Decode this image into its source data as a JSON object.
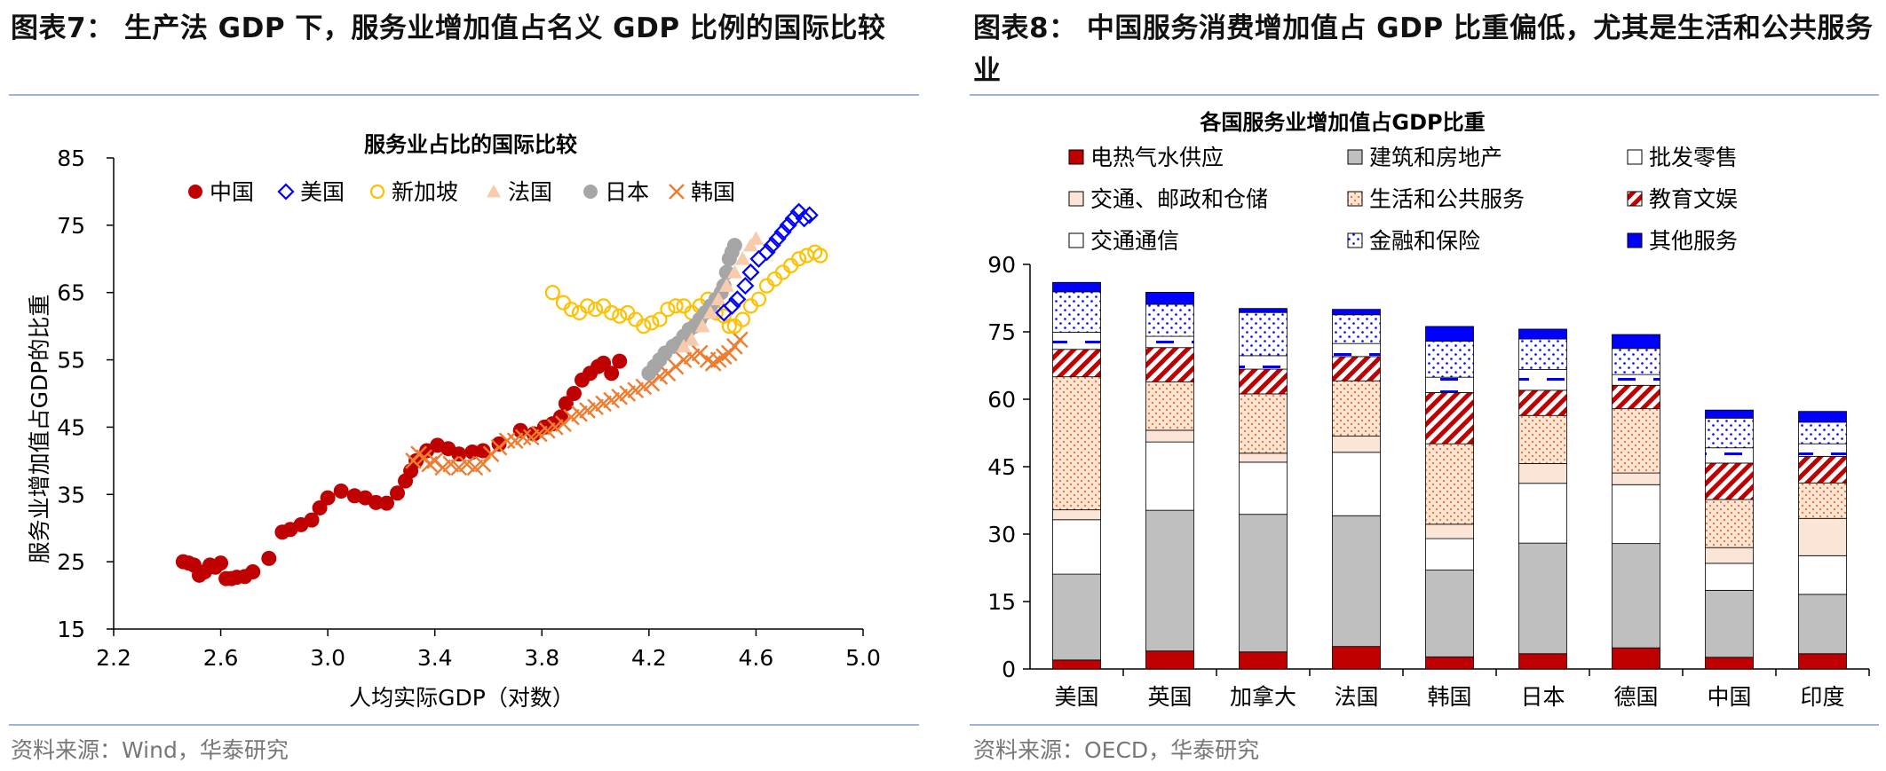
{
  "left": {
    "figure_title": "图表7：  生产法 GDP 下，服务业增加值占名义 GDP 比例的国际比较",
    "source": "资料来源：Wind，华泰研究"
  },
  "right": {
    "figure_title": "图表8：  中国服务消费增加值占 GDP 比重偏低，尤其是生活和公共服务业",
    "source": "资料来源：OECD，华泰研究"
  },
  "colors": {
    "china": "#c00000",
    "usa": "#0000ff",
    "singapore": "#ffc000",
    "france": "#f8cbad",
    "japan": "#a6a6a6",
    "korea": "#ed7d31",
    "utilities": "#c00000",
    "construction": "#bfbfbf",
    "wholesale": "#ffffff",
    "transport": "#fbe5d6",
    "public_services": "#fbe5d6",
    "education": "#c00000",
    "telecom": "#ffffff",
    "finance": "#ffffff",
    "other": "#0000ff"
  },
  "chart_data": [
    {
      "type": "scatter",
      "title": "服务业占比的国际比较",
      "xlabel": "人均实际GDP（对数）",
      "ylabel": "服务业增加值占GDP的比重",
      "xlim": [
        2.2,
        5.0
      ],
      "ylim": [
        15,
        85
      ],
      "xticks": [
        "2.2",
        "2.6",
        "3.0",
        "3.4",
        "3.8",
        "4.2",
        "4.6",
        "5.0"
      ],
      "yticks": [
        "15",
        "25",
        "35",
        "45",
        "55",
        "65",
        "75",
        "85"
      ],
      "legend_position": "top",
      "series": [
        {
          "name": "中国",
          "marker": "circle-filled",
          "color": "#c00000",
          "points": [
            [
              2.46,
              25
            ],
            [
              2.48,
              24.8
            ],
            [
              2.5,
              24.5
            ],
            [
              2.52,
              23
            ],
            [
              2.54,
              23.5
            ],
            [
              2.56,
              24.5
            ],
            [
              2.58,
              24.2
            ],
            [
              2.6,
              24.8
            ],
            [
              2.62,
              22.5
            ],
            [
              2.64,
              22.5
            ],
            [
              2.66,
              22.7
            ],
            [
              2.69,
              22.8
            ],
            [
              2.72,
              23.5
            ],
            [
              2.78,
              25.5
            ],
            [
              2.83,
              29.4
            ],
            [
              2.86,
              29.8
            ],
            [
              2.9,
              30.5
            ],
            [
              2.94,
              31.2
            ],
            [
              2.97,
              33
            ],
            [
              3.0,
              34.5
            ],
            [
              3.05,
              35.5
            ],
            [
              3.1,
              34.8
            ],
            [
              3.14,
              34.5
            ],
            [
              3.18,
              33.8
            ],
            [
              3.22,
              33.7
            ],
            [
              3.26,
              35.2
            ],
            [
              3.29,
              37
            ],
            [
              3.31,
              38.5
            ],
            [
              3.33,
              40
            ],
            [
              3.37,
              41.5
            ],
            [
              3.41,
              42.3
            ],
            [
              3.45,
              41.8
            ],
            [
              3.49,
              41
            ],
            [
              3.54,
              41.3
            ],
            [
              3.58,
              41.5
            ],
            [
              3.64,
              42.5
            ],
            [
              3.72,
              44.5
            ],
            [
              3.77,
              44
            ],
            [
              3.81,
              45
            ],
            [
              3.84,
              45.5
            ],
            [
              3.87,
              46.5
            ],
            [
              3.89,
              48.5
            ],
            [
              3.92,
              50
            ],
            [
              3.95,
              52
            ],
            [
              3.98,
              53
            ],
            [
              4.01,
              54
            ],
            [
              4.03,
              54.5
            ],
            [
              4.06,
              53
            ],
            [
              4.09,
              54.8
            ]
          ]
        },
        {
          "name": "美国",
          "marker": "diamond-open",
          "color": "#0000ff",
          "points": [
            [
              4.48,
              62
            ],
            [
              4.51,
              63
            ],
            [
              4.53,
              64
            ],
            [
              4.56,
              66
            ],
            [
              4.58,
              68
            ],
            [
              4.61,
              70
            ],
            [
              4.64,
              71
            ],
            [
              4.66,
              72
            ],
            [
              4.68,
              73
            ],
            [
              4.7,
              74
            ],
            [
              4.72,
              75
            ],
            [
              4.74,
              76
            ],
            [
              4.76,
              77
            ],
            [
              4.78,
              76
            ],
            [
              4.8,
              76.5
            ]
          ]
        },
        {
          "name": "新加坡",
          "marker": "circle-open",
          "color": "#ffc000",
          "points": [
            [
              3.84,
              65
            ],
            [
              3.88,
              63.5
            ],
            [
              3.91,
              62.5
            ],
            [
              3.94,
              62
            ],
            [
              3.97,
              63
            ],
            [
              4.0,
              62.5
            ],
            [
              4.03,
              63
            ],
            [
              4.06,
              62
            ],
            [
              4.09,
              61.5
            ],
            [
              4.12,
              62
            ],
            [
              4.15,
              61
            ],
            [
              4.18,
              60
            ],
            [
              4.21,
              60.5
            ],
            [
              4.24,
              61
            ],
            [
              4.27,
              62.5
            ],
            [
              4.3,
              63
            ],
            [
              4.33,
              63
            ],
            [
              4.36,
              62
            ],
            [
              4.39,
              63
            ],
            [
              4.42,
              64
            ],
            [
              4.45,
              62
            ],
            [
              4.48,
              61.5
            ],
            [
              4.5,
              60
            ],
            [
              4.52,
              60
            ],
            [
              4.55,
              61
            ],
            [
              4.58,
              63
            ],
            [
              4.61,
              64
            ],
            [
              4.64,
              66
            ],
            [
              4.67,
              67
            ],
            [
              4.7,
              68
            ],
            [
              4.73,
              69
            ],
            [
              4.76,
              70
            ],
            [
              4.79,
              70.5
            ],
            [
              4.82,
              71
            ],
            [
              4.84,
              70.5
            ]
          ]
        },
        {
          "name": "法国",
          "marker": "triangle-filled",
          "color": "#f8cbad",
          "points": [
            [
              4.33,
              57
            ],
            [
              4.36,
              58
            ],
            [
              4.4,
              60
            ],
            [
              4.43,
              62
            ],
            [
              4.46,
              64
            ],
            [
              4.49,
              66
            ],
            [
              4.52,
              68
            ],
            [
              4.55,
              70
            ],
            [
              4.58,
              72
            ],
            [
              4.6,
              73
            ]
          ]
        },
        {
          "name": "日本",
          "marker": "circle-filled",
          "color": "#a6a6a6",
          "points": [
            [
              4.2,
              53
            ],
            [
              4.22,
              54
            ],
            [
              4.24,
              55
            ],
            [
              4.26,
              56
            ],
            [
              4.29,
              57
            ],
            [
              4.31,
              57.5
            ],
            [
              4.33,
              58.5
            ],
            [
              4.35,
              59.5
            ],
            [
              4.37,
              60
            ],
            [
              4.39,
              61
            ],
            [
              4.41,
              62
            ],
            [
              4.43,
              63
            ],
            [
              4.45,
              64
            ],
            [
              4.47,
              65
            ],
            [
              4.48,
              66
            ],
            [
              4.49,
              68
            ],
            [
              4.5,
              70
            ],
            [
              4.51,
              71
            ],
            [
              4.52,
              72
            ]
          ]
        },
        {
          "name": "韩国",
          "marker": "x",
          "color": "#ed7d31",
          "points": [
            [
              3.32,
              40
            ],
            [
              3.34,
              41
            ],
            [
              3.36,
              40.5
            ],
            [
              3.38,
              39.5
            ],
            [
              3.4,
              40
            ],
            [
              3.43,
              39
            ],
            [
              3.46,
              39.5
            ],
            [
              3.49,
              39
            ],
            [
              3.52,
              39.5
            ],
            [
              3.55,
              39
            ],
            [
              3.58,
              39.5
            ],
            [
              3.61,
              41
            ],
            [
              3.64,
              42
            ],
            [
              3.67,
              43
            ],
            [
              3.7,
              43
            ],
            [
              3.73,
              43.5
            ],
            [
              3.76,
              43.5
            ],
            [
              3.79,
              44
            ],
            [
              3.82,
              44.5
            ],
            [
              3.85,
              45
            ],
            [
              3.88,
              45.5
            ],
            [
              3.91,
              46.5
            ],
            [
              3.94,
              47
            ],
            [
              3.97,
              47.5
            ],
            [
              4.0,
              48
            ],
            [
              4.03,
              48.5
            ],
            [
              4.06,
              49
            ],
            [
              4.09,
              49.5
            ],
            [
              4.12,
              50
            ],
            [
              4.15,
              50.5
            ],
            [
              4.18,
              51
            ],
            [
              4.21,
              51.5
            ],
            [
              4.24,
              52.5
            ],
            [
              4.27,
              53
            ],
            [
              4.3,
              54
            ],
            [
              4.33,
              55
            ],
            [
              4.36,
              55.5
            ],
            [
              4.39,
              56
            ],
            [
              4.42,
              55
            ],
            [
              4.44,
              54.5
            ],
            [
              4.46,
              55
            ],
            [
              4.48,
              55.5
            ],
            [
              4.5,
              56
            ],
            [
              4.52,
              57
            ],
            [
              4.54,
              58
            ]
          ]
        }
      ]
    },
    {
      "type": "bar",
      "stacked": true,
      "title": "各国服务业增加值占GDP比重",
      "xlabel": "",
      "ylabel": "",
      "ylim": [
        0,
        90
      ],
      "yticks": [
        "0",
        "15",
        "30",
        "45",
        "60",
        "75",
        "90"
      ],
      "legend_position": "top",
      "categories": [
        "美国",
        "英国",
        "加拿大",
        "法国",
        "韩国",
        "日本",
        "德国",
        "中国",
        "印度"
      ],
      "series": [
        {
          "name": "电热气水供应",
          "key": "utilities",
          "pattern": "solid",
          "color": "#c00000",
          "values": [
            2,
            4,
            3.8,
            5,
            2.7,
            3.4,
            4.7,
            2.6,
            3.4
          ]
        },
        {
          "name": "建筑和房地产",
          "key": "construction",
          "pattern": "solid",
          "color": "#bfbfbf",
          "values": [
            19.1,
            31.3,
            30.6,
            29.1,
            19.3,
            24.6,
            23.2,
            14.9,
            13.2
          ]
        },
        {
          "name": "批发零售",
          "key": "wholesale",
          "pattern": "solid",
          "color": "#ffffff",
          "values": [
            12.1,
            15.2,
            11.6,
            14.1,
            7,
            13.3,
            13.1,
            6,
            8.6
          ]
        },
        {
          "name": "交通、邮政和仓储",
          "key": "transport",
          "pattern": "solid",
          "color": "#fbe5d6",
          "values": [
            2.2,
            2.6,
            2,
            3.6,
            3.2,
            4.4,
            2.6,
            3.5,
            8.3
          ]
        },
        {
          "name": "生活和公共服务",
          "key": "public_services",
          "pattern": "dots",
          "color": "#ed7d31",
          "values": [
            29.6,
            10.8,
            13.2,
            12.3,
            17.9,
            10.7,
            14.3,
            10.7,
            7.9
          ]
        },
        {
          "name": "教育文娱",
          "key": "education",
          "pattern": "stripes",
          "color": "#c00000",
          "values": [
            6.1,
            7.6,
            5.5,
            5.4,
            11.4,
            5.6,
            5.2,
            8.1,
            5.9
          ]
        },
        {
          "name": "交通通信",
          "key": "telecom",
          "pattern": "dash",
          "color": "#0000ff",
          "values": [
            3.8,
            2.5,
            3,
            2.9,
            3.4,
            4.6,
            2.4,
            3.4,
            2.8
          ]
        },
        {
          "name": "金融和保险",
          "key": "finance",
          "pattern": "bluedots",
          "color": "#0000ff",
          "values": [
            9,
            7.1,
            9.6,
            6.4,
            8,
            6.8,
            5.8,
            6.6,
            4.8
          ]
        },
        {
          "name": "其他服务",
          "key": "other",
          "pattern": "solid",
          "color": "#0000ff",
          "values": [
            2.1,
            2.7,
            0.9,
            1.2,
            3.3,
            2.2,
            3.1,
            1.8,
            2.4
          ]
        }
      ]
    }
  ]
}
